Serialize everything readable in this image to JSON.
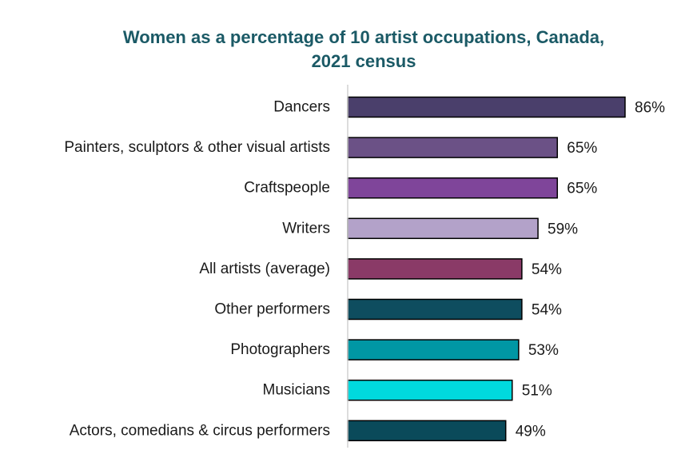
{
  "chart_data": {
    "type": "bar",
    "orientation": "horizontal",
    "title_lines": [
      "Women as a percentage of 10 artist occupations, Canada,",
      "2021 census"
    ],
    "categories": [
      "Dancers",
      "Painters, sculptors & other visual artists",
      "Craftspeople",
      "Writers",
      "All artists (average)",
      "Other performers",
      "Photographers",
      "Musicians",
      "Actors, comedians & circus performers"
    ],
    "values": [
      86,
      65,
      65,
      59,
      54,
      54,
      53,
      51,
      49
    ],
    "value_labels": [
      "86%",
      "65%",
      "65%",
      "59%",
      "54%",
      "54%",
      "53%",
      "51%",
      "49%"
    ],
    "unit": "%",
    "xlim": [
      0,
      86
    ],
    "bar_colors": [
      "#4a3f6b",
      "#6b5186",
      "#7f459a",
      "#b3a2c9",
      "#8a3a67",
      "#0e4d5f",
      "#0097a4",
      "#00d9de",
      "#0a4a5a"
    ],
    "title_color": "#1b5a66",
    "axis_color": "#d0d0d0",
    "bar_outline_color": "#000000",
    "grid": false,
    "legend": "none"
  }
}
